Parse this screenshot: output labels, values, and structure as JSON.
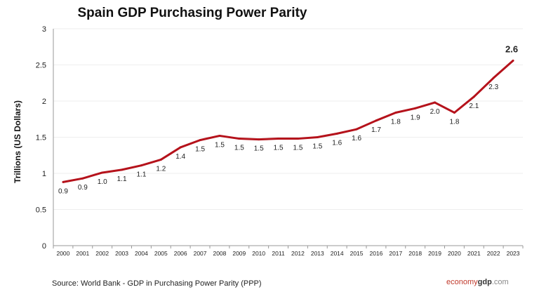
{
  "chart_data": {
    "type": "line",
    "title": "Spain GDP Purchasing Power Parity",
    "ylabel": "Trillions (US Dollars)",
    "xlabel": "",
    "ylim": [
      0,
      3
    ],
    "yticks": [
      "0",
      "0.5",
      "1",
      "1.5",
      "2",
      "2.5",
      "3"
    ],
    "grid": "horizontal",
    "x": [
      "2000",
      "2001",
      "2002",
      "2003",
      "2004",
      "2005",
      "2006",
      "2007",
      "2008",
      "2009",
      "2010",
      "2011",
      "2012",
      "2013",
      "2014",
      "2015",
      "2016",
      "2017",
      "2018",
      "2019",
      "2020",
      "2021",
      "2022",
      "2023"
    ],
    "values": [
      0.88,
      0.93,
      1.01,
      1.05,
      1.11,
      1.19,
      1.36,
      1.46,
      1.52,
      1.48,
      1.47,
      1.48,
      1.48,
      1.5,
      1.55,
      1.61,
      1.73,
      1.84,
      1.9,
      1.98,
      1.84,
      2.06,
      2.32,
      2.56
    ],
    "labels": [
      "0.9",
      "0.9",
      "1.0",
      "1.1",
      "1.1",
      "1.2",
      "1.4",
      "1.5",
      "1.5",
      "1.5",
      "1.5",
      "1.5",
      "1.5",
      "1.5",
      "1.6",
      "1.6",
      "1.7",
      "1.8",
      "1.9",
      "2.0",
      "1.8",
      "2.1",
      "2.3",
      "2.6"
    ],
    "line_color": "#b5121b"
  },
  "footer": {
    "source": "Source:  World Bank -  GDP  in Purchasing Power Parity (PPP)",
    "brand_a": "economy",
    "brand_b": "gdp",
    "brand_c": ".com"
  }
}
